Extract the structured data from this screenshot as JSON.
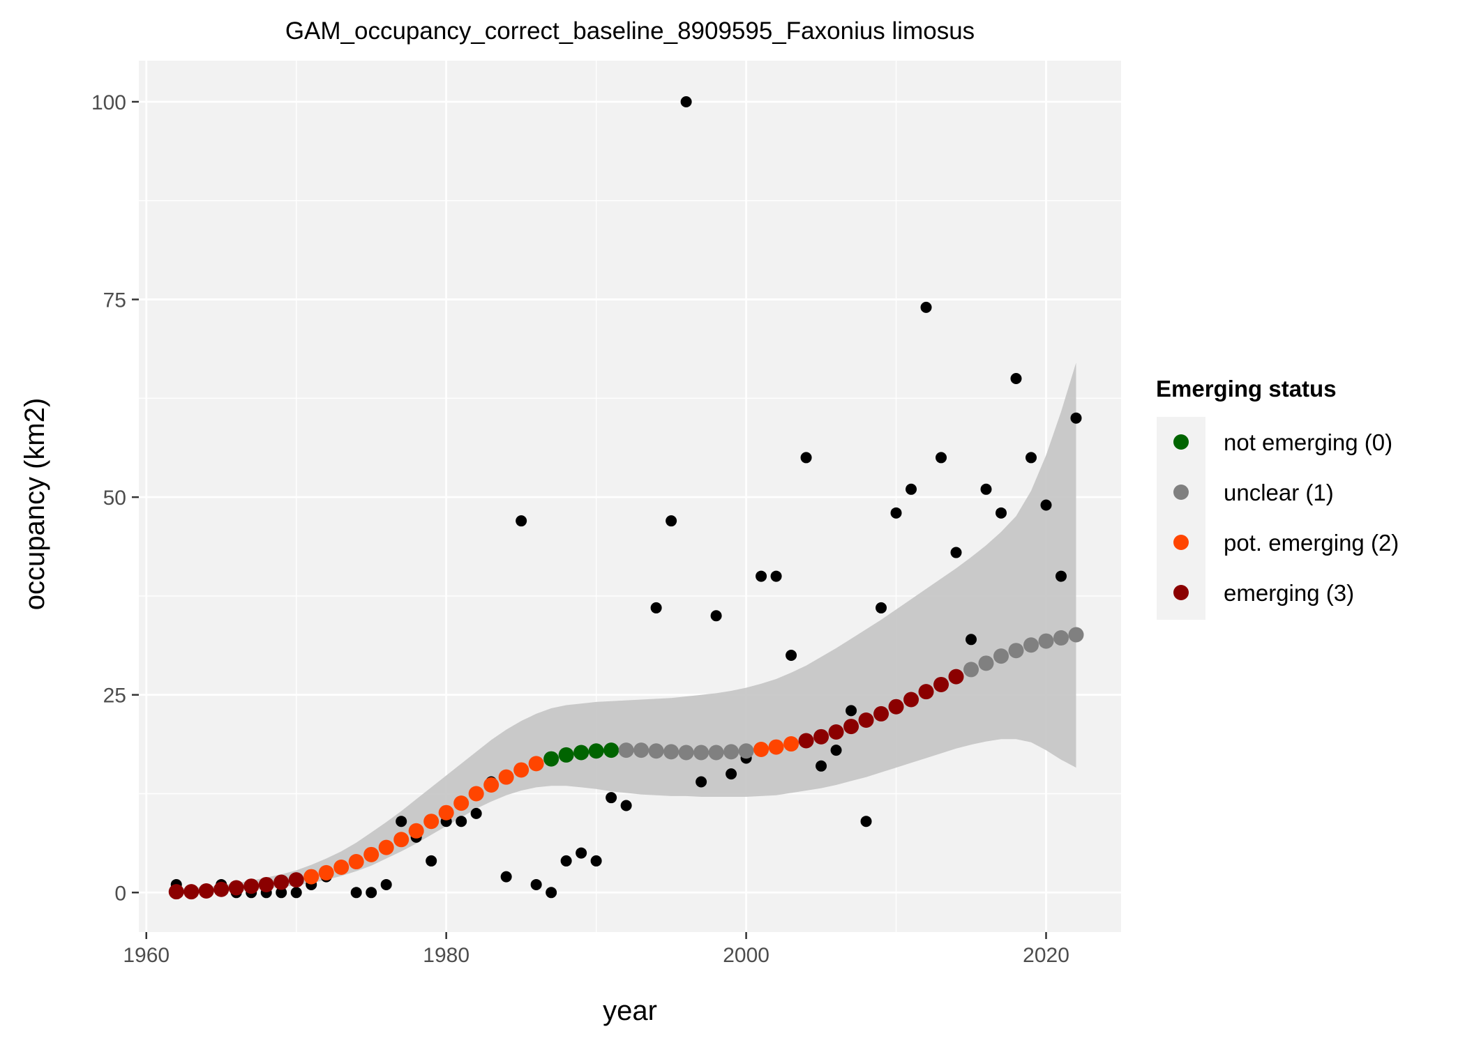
{
  "chart_data": {
    "type": "scatter",
    "title": "GAM_occupancy_correct_baseline_8909595_Faxonius limosus",
    "xlabel": "year",
    "ylabel": "occupancy (km2)",
    "xlim": [
      1959.5,
      2025.0
    ],
    "ylim": [
      -5.0,
      105.2
    ],
    "x_ticks": [
      1960,
      1980,
      2000,
      2020
    ],
    "y_ticks": [
      0,
      25,
      50,
      75,
      100
    ],
    "x_tick_labels": [
      "1960",
      "1980",
      "2000",
      "2020"
    ],
    "y_tick_labels": [
      "0",
      "25",
      "50",
      "75",
      "100"
    ],
    "grid": true,
    "legend": {
      "title": "Emerging status",
      "position": "right",
      "entries": [
        {
          "label": "not emerging (0)",
          "color": "#006400"
        },
        {
          "label": "unclear (1)",
          "color": "#808080"
        },
        {
          "label": "pot. emerging (2)",
          "color": "#FF4500"
        },
        {
          "label": "emerging (3)",
          "color": "#8B0000"
        }
      ]
    },
    "colors": {
      "panel_background": "#f2f2f2",
      "grid": "#ffffff",
      "ribbon": "#c4c4c4",
      "observed": "#000000"
    },
    "observed_points": {
      "x": [
        1962,
        1963,
        1964,
        1965,
        1966,
        1967,
        1968,
        1969,
        1970,
        1971,
        1972,
        1974,
        1975,
        1976,
        1977,
        1978,
        1979,
        1980,
        1981,
        1982,
        1983,
        1984,
        1985,
        1986,
        1987,
        1988,
        1989,
        1990,
        1991,
        1992,
        1994,
        1995,
        1996,
        1997,
        1998,
        1999,
        2000,
        2001,
        2002,
        2003,
        2004,
        2005,
        2006,
        2007,
        2008,
        2009,
        2010,
        2011,
        2012,
        2013,
        2014,
        2015,
        2016,
        2017,
        2018,
        2019,
        2020,
        2021,
        2022
      ],
      "y": [
        1,
        0,
        0,
        1,
        0,
        0,
        0,
        0,
        0,
        1,
        2,
        0,
        0,
        1,
        9,
        7,
        4,
        9,
        9,
        10,
        14,
        2,
        47,
        1,
        0,
        4,
        5,
        4,
        12,
        11,
        36,
        47,
        100,
        14,
        35,
        15,
        17,
        40,
        40,
        30,
        55,
        16,
        18,
        23,
        9,
        36,
        48,
        51,
        74,
        55,
        43,
        32,
        51,
        48,
        65,
        55,
        49,
        40,
        60
      ]
    },
    "gam_fit": {
      "x": [
        1962,
        1963,
        1964,
        1965,
        1966,
        1967,
        1968,
        1969,
        1970,
        1971,
        1972,
        1973,
        1974,
        1975,
        1976,
        1977,
        1978,
        1979,
        1980,
        1981,
        1982,
        1983,
        1984,
        1985,
        1986,
        1987,
        1988,
        1989,
        1990,
        1991,
        1992,
        1993,
        1994,
        1995,
        1996,
        1997,
        1998,
        1999,
        2000,
        2001,
        2002,
        2003,
        2004,
        2005,
        2006,
        2007,
        2008,
        2009,
        2010,
        2011,
        2012,
        2013,
        2014,
        2015,
        2016,
        2017,
        2018,
        2019,
        2020,
        2021,
        2022
      ],
      "y": [
        0.1,
        0.1,
        0.2,
        0.4,
        0.6,
        0.8,
        1.0,
        1.3,
        1.6,
        2.0,
        2.5,
        3.2,
        3.9,
        4.8,
        5.7,
        6.7,
        7.8,
        9.0,
        10.1,
        11.3,
        12.5,
        13.6,
        14.6,
        15.5,
        16.3,
        16.9,
        17.4,
        17.7,
        17.9,
        18.0,
        18.0,
        18.0,
        17.9,
        17.8,
        17.7,
        17.7,
        17.7,
        17.8,
        17.9,
        18.1,
        18.4,
        18.8,
        19.2,
        19.7,
        20.3,
        21.0,
        21.8,
        22.6,
        23.5,
        24.4,
        25.4,
        26.3,
        27.3,
        28.2,
        29.0,
        29.9,
        30.6,
        31.3,
        31.8,
        32.2,
        32.6
      ],
      "status": [
        3,
        3,
        3,
        3,
        3,
        3,
        3,
        3,
        3,
        2,
        2,
        2,
        2,
        2,
        2,
        2,
        2,
        2,
        2,
        2,
        2,
        2,
        2,
        2,
        2,
        0,
        0,
        0,
        0,
        0,
        1,
        1,
        1,
        1,
        1,
        1,
        1,
        1,
        1,
        2,
        2,
        2,
        3,
        3,
        3,
        3,
        3,
        3,
        3,
        3,
        3,
        3,
        3,
        1,
        1,
        1,
        1,
        1,
        1,
        1,
        1
      ],
      "lower": [
        0.0,
        0.0,
        0.0,
        0.1,
        0.2,
        0.3,
        0.5,
        0.7,
        0.9,
        1.2,
        1.6,
        2.1,
        2.7,
        3.4,
        4.3,
        5.2,
        6.2,
        7.3,
        8.4,
        9.5,
        10.6,
        11.5,
        12.3,
        12.9,
        13.3,
        13.5,
        13.5,
        13.3,
        13.1,
        12.8,
        12.6,
        12.4,
        12.3,
        12.2,
        12.2,
        12.1,
        12.1,
        12.1,
        12.1,
        12.2,
        12.3,
        12.6,
        12.9,
        13.2,
        13.6,
        14.1,
        14.6,
        15.2,
        15.8,
        16.4,
        17.0,
        17.6,
        18.2,
        18.7,
        19.1,
        19.4,
        19.4,
        19.0,
        18.0,
        16.8,
        15.8
      ],
      "upper": [
        0.5,
        0.6,
        0.7,
        0.9,
        1.2,
        1.5,
        1.9,
        2.3,
        2.8,
        3.5,
        4.3,
        5.2,
        6.3,
        7.6,
        8.9,
        10.3,
        11.8,
        13.3,
        14.8,
        16.3,
        17.8,
        19.3,
        20.6,
        21.7,
        22.6,
        23.3,
        23.7,
        23.9,
        24.1,
        24.2,
        24.3,
        24.4,
        24.5,
        24.6,
        24.8,
        25.0,
        25.2,
        25.5,
        25.9,
        26.4,
        27.0,
        27.8,
        28.7,
        29.8,
        30.9,
        32.1,
        33.3,
        34.5,
        35.8,
        37.1,
        38.4,
        39.7,
        41.0,
        42.4,
        43.9,
        45.6,
        47.6,
        50.8,
        55.3,
        60.8,
        67.0
      ]
    }
  }
}
